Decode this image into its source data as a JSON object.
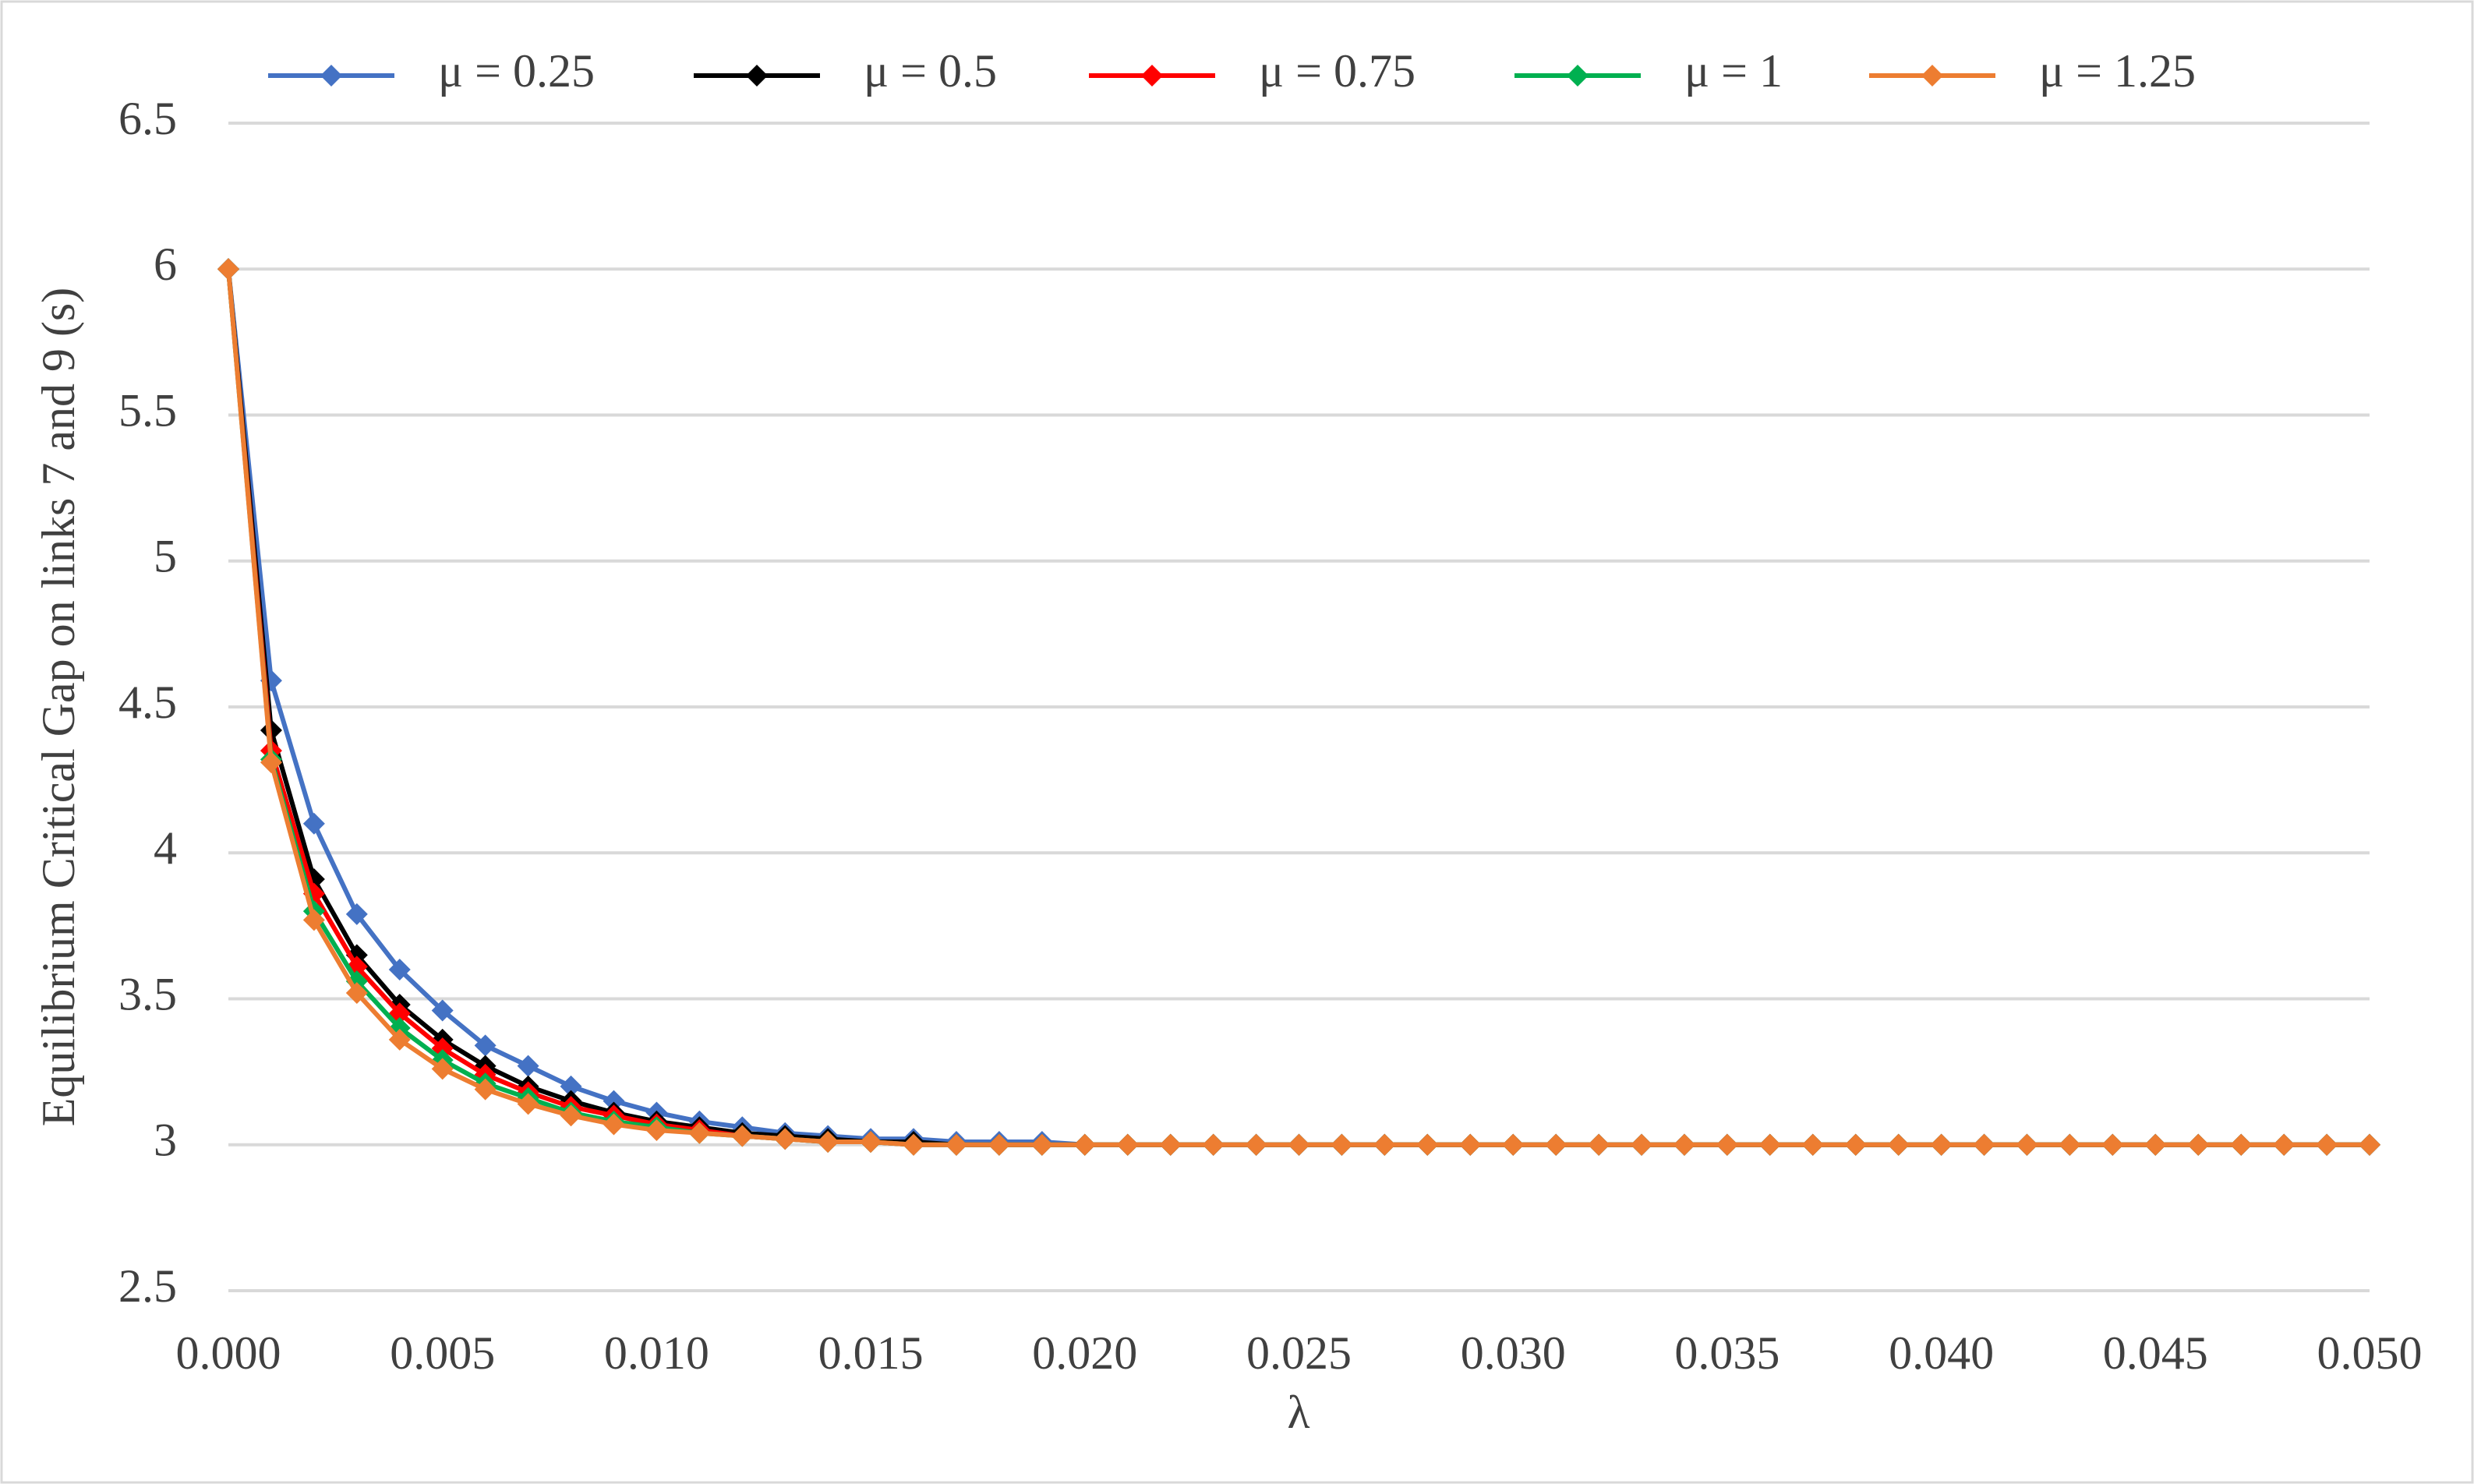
{
  "chart_data": {
    "type": "line",
    "y_label": "Equilibrium Critical Gap on links 7 and 9 (s)",
    "x_label": "λ",
    "x": [
      0,
      0.001,
      0.002,
      0.003,
      0.004,
      0.005,
      0.006,
      0.007,
      0.008,
      0.009,
      0.01,
      0.011,
      0.012,
      0.013,
      0.014,
      0.015,
      0.016,
      0.017,
      0.018,
      0.019,
      0.02,
      0.021,
      0.022,
      0.023,
      0.024,
      0.025,
      0.026,
      0.027,
      0.028,
      0.029,
      0.03,
      0.031,
      0.032,
      0.033,
      0.034,
      0.035,
      0.036,
      0.037,
      0.038,
      0.039,
      0.04,
      0.041,
      0.042,
      0.043,
      0.044,
      0.045,
      0.046,
      0.047,
      0.048,
      0.049,
      0.05
    ],
    "series": [
      {
        "name": "μ = 0.25",
        "color": "#4472c4",
        "values": [
          6,
          4.59,
          4.1,
          3.79,
          3.6,
          3.46,
          3.34,
          3.27,
          3.2,
          3.15,
          3.11,
          3.08,
          3.06,
          3.04,
          3.03,
          3.02,
          3.02,
          3.01,
          3.01,
          3.01,
          3,
          3,
          3,
          3,
          3,
          3,
          3,
          3,
          3,
          3,
          3,
          3,
          3,
          3,
          3,
          3,
          3,
          3,
          3,
          3,
          3,
          3,
          3,
          3,
          3,
          3,
          3,
          3,
          3,
          3,
          3
        ]
      },
      {
        "name": "μ = 0.5",
        "color": "#000000",
        "values": [
          6,
          4.42,
          3.91,
          3.65,
          3.48,
          3.36,
          3.27,
          3.2,
          3.15,
          3.11,
          3.08,
          3.06,
          3.04,
          3.03,
          3.02,
          3.01,
          3.01,
          3,
          3,
          3,
          3,
          3,
          3,
          3,
          3,
          3,
          3,
          3,
          3,
          3,
          3,
          3,
          3,
          3,
          3,
          3,
          3,
          3,
          3,
          3,
          3,
          3,
          3,
          3,
          3,
          3,
          3,
          3,
          3,
          3,
          3
        ]
      },
      {
        "name": "μ = 0.75",
        "color": "#ff0000",
        "values": [
          6,
          4.35,
          3.86,
          3.61,
          3.45,
          3.33,
          3.24,
          3.18,
          3.13,
          3.1,
          3.07,
          3.05,
          3.03,
          3.02,
          3.01,
          3.01,
          3,
          3,
          3,
          3,
          3,
          3,
          3,
          3,
          3,
          3,
          3,
          3,
          3,
          3,
          3,
          3,
          3,
          3,
          3,
          3,
          3,
          3,
          3,
          3,
          3,
          3,
          3,
          3,
          3,
          3,
          3,
          3,
          3,
          3,
          3
        ]
      },
      {
        "name": "μ = 1",
        "color": "#00b050",
        "values": [
          6,
          4.32,
          3.8,
          3.56,
          3.4,
          3.29,
          3.21,
          3.16,
          3.11,
          3.08,
          3.06,
          3.04,
          3.03,
          3.02,
          3.01,
          3.01,
          3,
          3,
          3,
          3,
          3,
          3,
          3,
          3,
          3,
          3,
          3,
          3,
          3,
          3,
          3,
          3,
          3,
          3,
          3,
          3,
          3,
          3,
          3,
          3,
          3,
          3,
          3,
          3,
          3,
          3,
          3,
          3,
          3,
          3,
          3
        ]
      },
      {
        "name": "μ = 1.25",
        "color": "#ed7d31",
        "values": [
          6,
          4.31,
          3.77,
          3.52,
          3.36,
          3.26,
          3.19,
          3.14,
          3.1,
          3.07,
          3.05,
          3.04,
          3.03,
          3.02,
          3.01,
          3.01,
          3,
          3,
          3,
          3,
          3,
          3,
          3,
          3,
          3,
          3,
          3,
          3,
          3,
          3,
          3,
          3,
          3,
          3,
          3,
          3,
          3,
          3,
          3,
          3,
          3,
          3,
          3,
          3,
          3,
          3,
          3,
          3,
          3,
          3,
          3
        ]
      }
    ],
    "xlim": [
      0,
      0.05
    ],
    "xticks": [
      {
        "value": 0,
        "label": "0.000"
      },
      {
        "value": 0.005,
        "label": "0.005"
      },
      {
        "value": 0.01,
        "label": "0.010"
      },
      {
        "value": 0.015,
        "label": "0.015"
      },
      {
        "value": 0.02,
        "label": "0.020"
      },
      {
        "value": 0.025,
        "label": "0.025"
      },
      {
        "value": 0.03,
        "label": "0.030"
      },
      {
        "value": 0.035,
        "label": "0.035"
      },
      {
        "value": 0.04,
        "label": "0.040"
      },
      {
        "value": 0.045,
        "label": "0.045"
      },
      {
        "value": 0.05,
        "label": "0.050"
      }
    ],
    "ylim": [
      2.5,
      6.5
    ],
    "yticks": [
      2.5,
      3,
      3.5,
      4,
      4.5,
      5,
      5.5,
      6,
      6.5
    ],
    "grid": true,
    "legend": "top"
  }
}
